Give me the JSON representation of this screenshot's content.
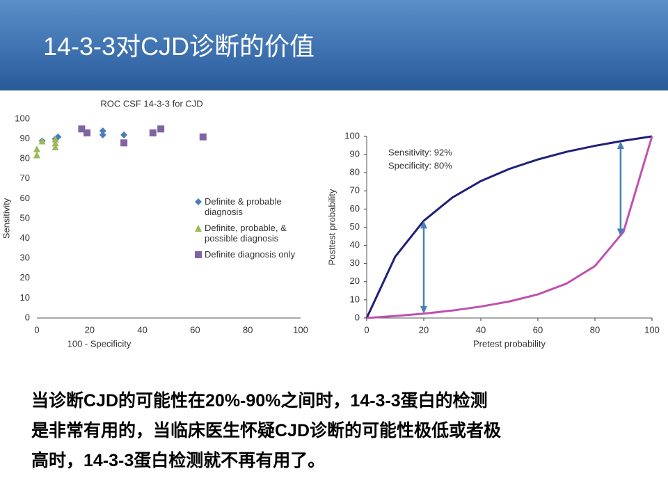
{
  "slide": {
    "title": "14-3-3对CJD诊断的价值",
    "body": [
      "当诊断CJD的可能性在20%-90%之间时，14-3-3蛋白的检测",
      "是非常有用的，当临床医生怀疑CJD诊断的可能性极低或者极",
      "高时，14-3-3蛋白检测就不再有用了。"
    ]
  },
  "chart_data": [
    {
      "type": "scatter",
      "title": "ROC CSF 14-3-3 for CJD",
      "x_label": "100 -  Specificity",
      "y_label": "Sensitivity",
      "xlim": [
        0,
        100
      ],
      "ylim": [
        0,
        100
      ],
      "xticks": [
        0,
        20,
        40,
        60,
        80,
        100
      ],
      "yticks": [
        0,
        10,
        20,
        30,
        40,
        50,
        60,
        70,
        80,
        90,
        100
      ],
      "series": [
        {
          "name": "Definite & probable diagnosis",
          "color": "#4a7ebb",
          "marker": "diamond",
          "x": [
            2,
            7,
            8,
            25,
            25,
            33
          ],
          "values": [
            89,
            90,
            91,
            92,
            94,
            92
          ]
        },
        {
          "name": "Definite, probable, & possible diagnosis",
          "color": "#9bbb59",
          "marker": "triangle",
          "x": [
            0,
            0,
            2,
            7,
            7,
            7
          ],
          "values": [
            82,
            85,
            89,
            86,
            88,
            90
          ]
        },
        {
          "name": "Definite diagnosis only",
          "color": "#8064a2",
          "marker": "square",
          "x": [
            17,
            19,
            33,
            44,
            47,
            63
          ],
          "values": [
            95,
            93,
            88,
            93,
            95,
            91
          ]
        }
      ]
    },
    {
      "type": "line",
      "x_label": "Pretest probability",
      "y_label": "Posttest probability",
      "annotations": [
        "Sensitivity: 92%",
        "Specificity: 80%"
      ],
      "xlim": [
        0,
        100
      ],
      "ylim": [
        0,
        100
      ],
      "xticks": [
        0,
        20,
        40,
        60,
        80,
        100
      ],
      "yticks": [
        0,
        10,
        20,
        30,
        40,
        50,
        60,
        70,
        80,
        90,
        100
      ],
      "x": [
        0,
        10,
        20,
        30,
        40,
        50,
        60,
        70,
        80,
        90,
        100
      ],
      "series": [
        {
          "color": "#1f1f7a",
          "values": [
            0,
            33.8,
            53.5,
            66.3,
            75.4,
            82.1,
            87.3,
            91.5,
            94.8,
            97.6,
            100
          ]
        },
        {
          "color": "#c050b0",
          "values": [
            0,
            1.1,
            2.4,
            4.1,
            6.3,
            9.1,
            13.0,
            18.9,
            28.6,
            47.4,
            100
          ]
        }
      ],
      "arrows": [
        {
          "x": 20,
          "from": 53.5,
          "to": 2.4
        },
        {
          "x": 89,
          "from": 97.3,
          "to": 45
        }
      ],
      "arrow_color": "#4a7ebb"
    }
  ]
}
